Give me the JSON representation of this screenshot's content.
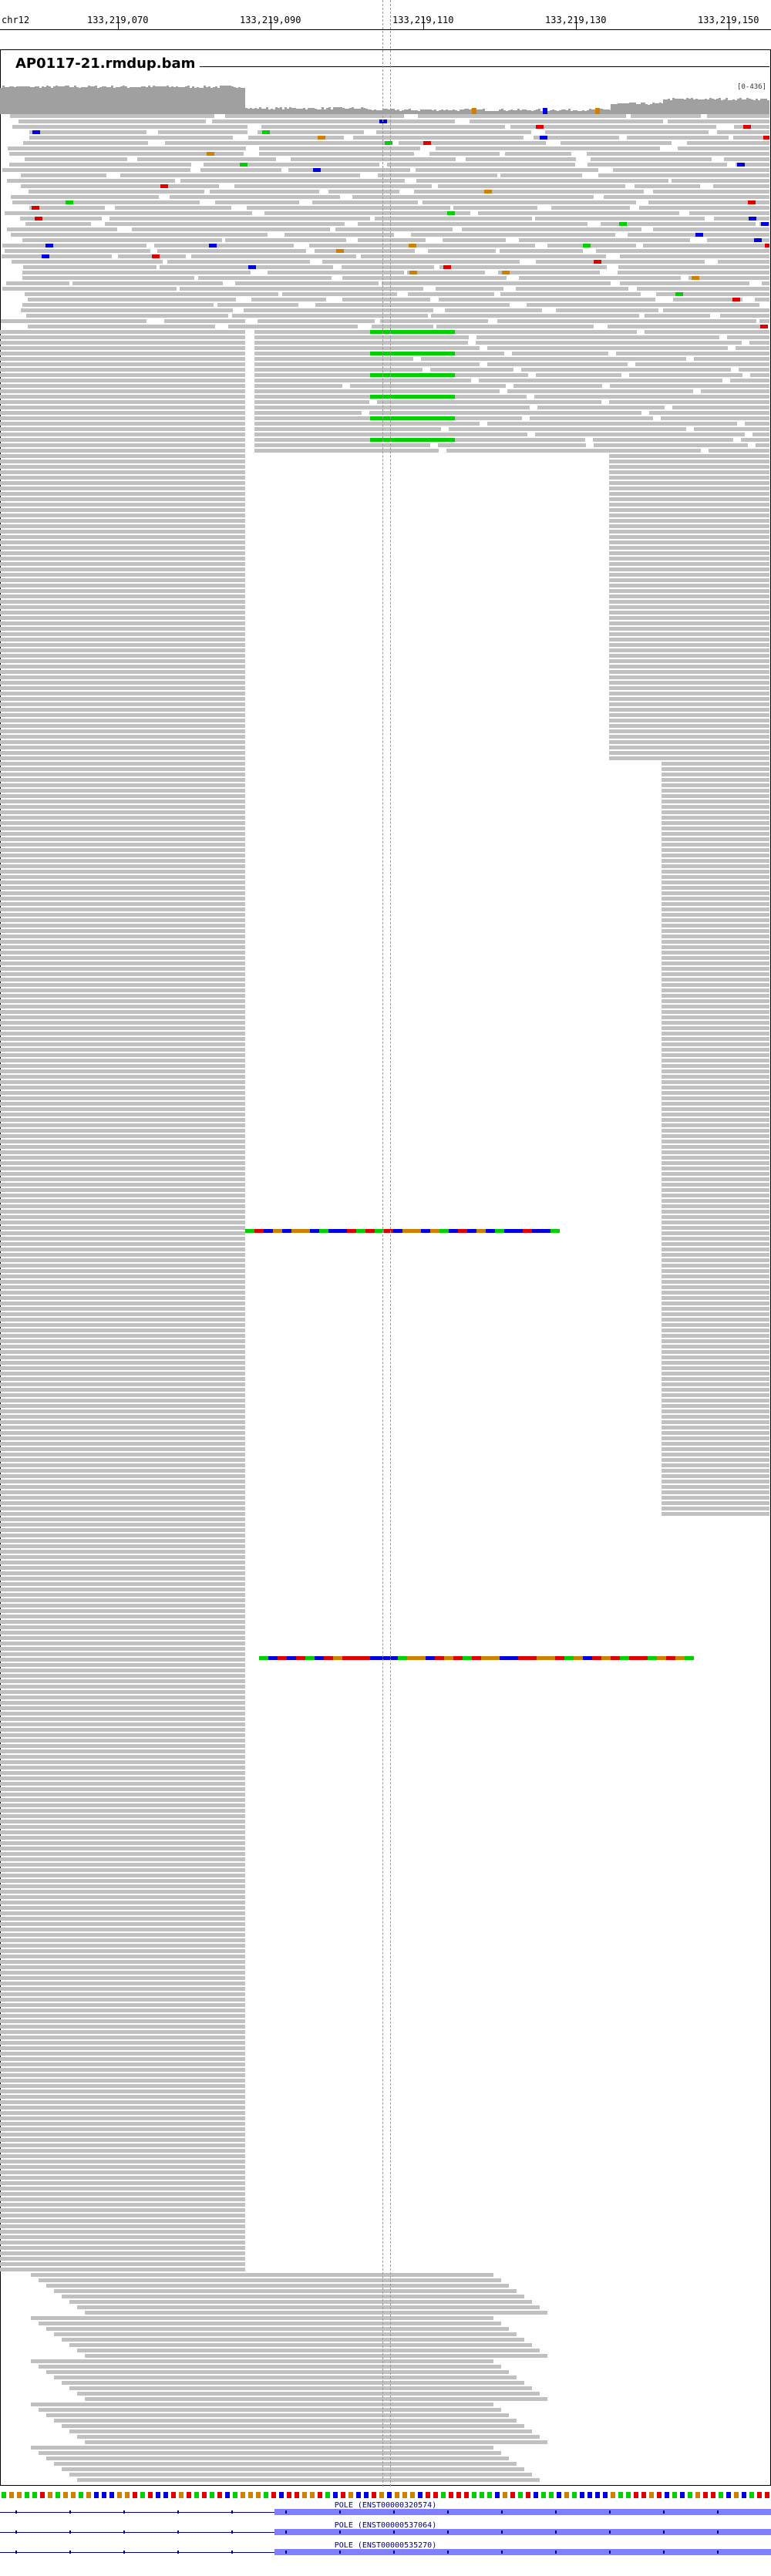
{
  "ruler": {
    "chrom": "chr12",
    "ticks": [
      "133,219,070",
      "133,219,090",
      "133,219,110",
      "133,219,130",
      "133,219,150"
    ]
  },
  "track": {
    "title": "AP0117-21.rmdup.bam",
    "range": "[0-436]"
  },
  "colors": {
    "read": "#c0c0c0",
    "A": "#00d000",
    "C": "#0000e0",
    "G": "#d08000",
    "T": "#e00000",
    "coverage": "#a0a0a0"
  },
  "genes": [
    "POLE (ENST00000320574)",
    "POLE (ENST00000537064)",
    "POLE (ENST00000535270)"
  ]
}
